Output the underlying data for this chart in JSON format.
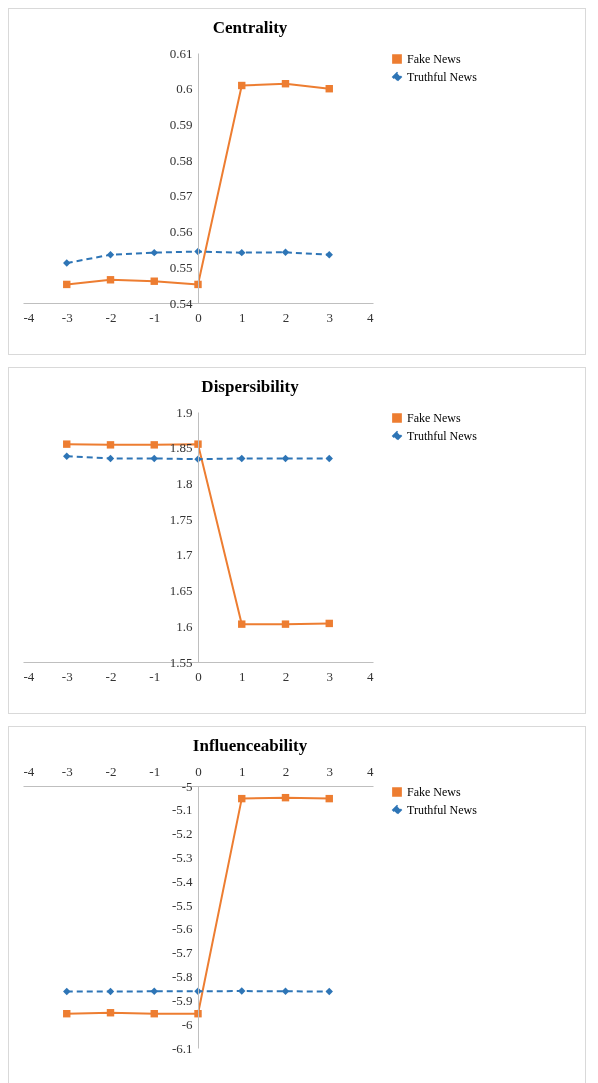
{
  "chart_data": [
    {
      "type": "line",
      "title": "Centrality",
      "x": [
        -3,
        -2,
        -1,
        0,
        1,
        2,
        3
      ],
      "xlim": [
        -4,
        4
      ],
      "xticks": [
        -4,
        -3,
        -2,
        -1,
        0,
        1,
        2,
        3,
        4
      ],
      "ylim": [
        0.54,
        0.61
      ],
      "yticks": [
        0.54,
        0.55,
        0.56,
        0.57,
        0.58,
        0.59,
        0.6,
        0.61
      ],
      "legend": "right",
      "series": [
        {
          "name": "Fake News",
          "color": "#ed7d31",
          "marker": "square",
          "line_style": "solid",
          "values": [
            0.5452,
            0.5465,
            0.5461,
            0.5452,
            0.6009,
            0.6014,
            0.6
          ]
        },
        {
          "name": "Truthful News",
          "color": "#2e75b6",
          "marker": "diamond",
          "line_style": "dashed",
          "values": [
            0.5512,
            0.5535,
            0.5541,
            0.5544,
            0.5541,
            0.5542,
            0.5535
          ]
        }
      ]
    },
    {
      "type": "line",
      "title": "Dispersibility",
      "x": [
        -3,
        -2,
        -1,
        0,
        1,
        2,
        3
      ],
      "xlim": [
        -4,
        4
      ],
      "xticks": [
        -4,
        -3,
        -2,
        -1,
        0,
        1,
        2,
        3,
        4
      ],
      "ylim": [
        1.55,
        1.9
      ],
      "yticks": [
        1.55,
        1.6,
        1.65,
        1.7,
        1.75,
        1.8,
        1.85,
        1.9
      ],
      "legend": "right",
      "series": [
        {
          "name": "Fake News",
          "color": "#ed7d31",
          "marker": "square",
          "line_style": "solid",
          "values": [
            1.855,
            1.854,
            1.854,
            1.855,
            1.603,
            1.603,
            1.604
          ]
        },
        {
          "name": "Truthful News",
          "color": "#2e75b6",
          "marker": "diamond",
          "line_style": "dashed",
          "values": [
            1.838,
            1.835,
            1.835,
            1.834,
            1.835,
            1.835,
            1.835
          ]
        }
      ]
    },
    {
      "type": "line",
      "title": "Influenceability",
      "x": [
        -3,
        -2,
        -1,
        0,
        1,
        2,
        3
      ],
      "xlim": [
        -4,
        4
      ],
      "xticks": [
        -4,
        -3,
        -2,
        -1,
        0,
        1,
        2,
        3,
        4
      ],
      "ylim": [
        -6.1,
        -5
      ],
      "yticks": [
        -6.1,
        -6,
        -5.9,
        -5.8,
        -5.7,
        -5.6,
        -5.5,
        -5.4,
        -5.3,
        -5.2,
        -5.1,
        -5
      ],
      "legend": "right",
      "series": [
        {
          "name": "Fake News",
          "color": "#ed7d31",
          "marker": "square",
          "line_style": "solid",
          "values": [
            -5.956,
            -5.952,
            -5.956,
            -5.956,
            -5.053,
            -5.049,
            -5.053
          ]
        },
        {
          "name": "Truthful News",
          "color": "#2e75b6",
          "marker": "diamond",
          "line_style": "dashed",
          "values": [
            -5.863,
            -5.863,
            -5.862,
            -5.862,
            -5.861,
            -5.862,
            -5.863
          ]
        }
      ]
    }
  ]
}
